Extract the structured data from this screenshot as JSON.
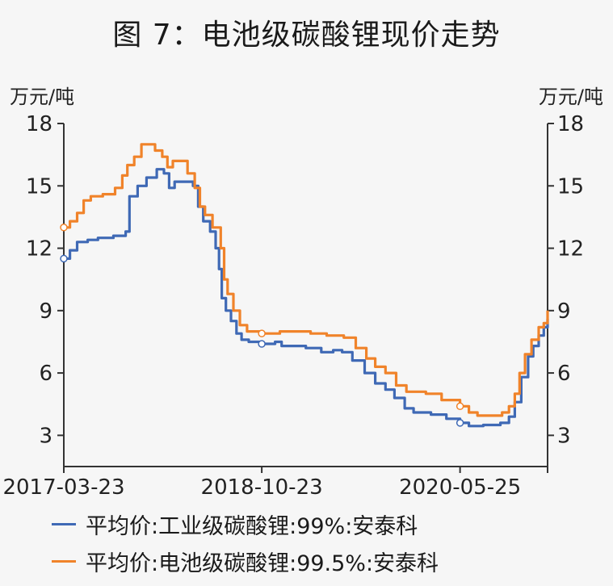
{
  "title": "图 7：电池级碳酸锂现价走势",
  "chart_data": {
    "type": "line",
    "left_unit": "万元/吨",
    "right_unit": "万元/吨",
    "x_tick_labels": [
      "2017-03-23",
      "2018-10-23",
      "2020-05-25"
    ],
    "x_tick_dates": [
      "2017-03-23",
      "2018-10-23",
      "2020-05-25"
    ],
    "x_range": [
      "2017-03-23",
      "2021-02-05"
    ],
    "ylim": [
      1.5,
      18
    ],
    "y_ticks": [
      3,
      6,
      9,
      12,
      15,
      18
    ],
    "series": [
      {
        "name": "平均价:工业级碳酸锂:99%:安泰科",
        "color": "#3f69b5",
        "points": [
          [
            "2017-03-23",
            11.5
          ],
          [
            "2017-04-10",
            11.9
          ],
          [
            "2017-05-01",
            12.3
          ],
          [
            "2017-06-01",
            12.4
          ],
          [
            "2017-07-01",
            12.5
          ],
          [
            "2017-08-15",
            12.6
          ],
          [
            "2017-09-20",
            12.8
          ],
          [
            "2017-10-01",
            14.5
          ],
          [
            "2017-10-25",
            15.0
          ],
          [
            "2017-11-20",
            15.4
          ],
          [
            "2017-12-20",
            15.8
          ],
          [
            "2018-01-10",
            15.6
          ],
          [
            "2018-01-25",
            14.9
          ],
          [
            "2018-02-10",
            15.2
          ],
          [
            "2018-03-15",
            15.2
          ],
          [
            "2018-04-05",
            15.0
          ],
          [
            "2018-04-20",
            14.0
          ],
          [
            "2018-05-05",
            13.3
          ],
          [
            "2018-05-25",
            12.8
          ],
          [
            "2018-06-10",
            12.0
          ],
          [
            "2018-06-20",
            11.0
          ],
          [
            "2018-06-28",
            9.6
          ],
          [
            "2018-07-10",
            9.0
          ],
          [
            "2018-07-25",
            8.5
          ],
          [
            "2018-08-10",
            7.9
          ],
          [
            "2018-08-25",
            7.6
          ],
          [
            "2018-09-15",
            7.5
          ],
          [
            "2018-10-23",
            7.4
          ],
          [
            "2018-12-01",
            7.5
          ],
          [
            "2018-12-20",
            7.3
          ],
          [
            "2019-03-01",
            7.2
          ],
          [
            "2019-04-15",
            7.0
          ],
          [
            "2019-05-20",
            7.1
          ],
          [
            "2019-06-15",
            7.0
          ],
          [
            "2019-07-15",
            6.6
          ],
          [
            "2019-08-20",
            6.0
          ],
          [
            "2019-09-20",
            5.5
          ],
          [
            "2019-10-20",
            5.2
          ],
          [
            "2019-11-15",
            4.8
          ],
          [
            "2019-12-15",
            4.3
          ],
          [
            "2020-01-10",
            4.1
          ],
          [
            "2020-03-01",
            4.0
          ],
          [
            "2020-04-15",
            3.8
          ],
          [
            "2020-05-25",
            3.6
          ],
          [
            "2020-06-20",
            3.45
          ],
          [
            "2020-08-01",
            3.5
          ],
          [
            "2020-09-20",
            3.6
          ],
          [
            "2020-10-15",
            3.9
          ],
          [
            "2020-11-01",
            4.6
          ],
          [
            "2020-11-20",
            5.8
          ],
          [
            "2020-12-10",
            6.8
          ],
          [
            "2020-12-25",
            7.3
          ],
          [
            "2021-01-10",
            7.8
          ],
          [
            "2021-01-25",
            8.2
          ],
          [
            "2021-02-05",
            8.6
          ]
        ]
      },
      {
        "name": "平均价:电池级碳酸锂:99.5%:安泰科",
        "color": "#f0832a",
        "points": [
          [
            "2017-03-23",
            13.0
          ],
          [
            "2017-04-10",
            13.3
          ],
          [
            "2017-05-01",
            13.7
          ],
          [
            "2017-05-20",
            14.3
          ],
          [
            "2017-06-10",
            14.5
          ],
          [
            "2017-07-15",
            14.6
          ],
          [
            "2017-08-20",
            14.9
          ],
          [
            "2017-09-10",
            15.5
          ],
          [
            "2017-09-25",
            16.0
          ],
          [
            "2017-10-15",
            16.4
          ],
          [
            "2017-11-05",
            17.0
          ],
          [
            "2017-12-15",
            16.7
          ],
          [
            "2018-01-05",
            16.4
          ],
          [
            "2018-01-20",
            15.9
          ],
          [
            "2018-02-05",
            16.2
          ],
          [
            "2018-03-01",
            16.2
          ],
          [
            "2018-03-20",
            15.6
          ],
          [
            "2018-04-10",
            14.9
          ],
          [
            "2018-04-25",
            14.0
          ],
          [
            "2018-05-10",
            13.6
          ],
          [
            "2018-06-01",
            13.0
          ],
          [
            "2018-06-25",
            12.0
          ],
          [
            "2018-07-05",
            10.5
          ],
          [
            "2018-07-15",
            9.8
          ],
          [
            "2018-08-01",
            9.0
          ],
          [
            "2018-08-20",
            8.3
          ],
          [
            "2018-09-10",
            8.0
          ],
          [
            "2018-10-23",
            7.9
          ],
          [
            "2018-12-15",
            8.0
          ],
          [
            "2019-03-15",
            7.9
          ],
          [
            "2019-05-01",
            7.8
          ],
          [
            "2019-06-20",
            7.7
          ],
          [
            "2019-07-25",
            7.2
          ],
          [
            "2019-08-25",
            6.7
          ],
          [
            "2019-09-20",
            6.3
          ],
          [
            "2019-10-20",
            6.0
          ],
          [
            "2019-11-20",
            5.4
          ],
          [
            "2019-12-20",
            5.1
          ],
          [
            "2020-02-15",
            5.0
          ],
          [
            "2020-04-01",
            4.7
          ],
          [
            "2020-05-25",
            4.4
          ],
          [
            "2020-06-20",
            4.1
          ],
          [
            "2020-07-15",
            3.95
          ],
          [
            "2020-09-01",
            3.95
          ],
          [
            "2020-09-25",
            4.1
          ],
          [
            "2020-10-15",
            4.4
          ],
          [
            "2020-11-01",
            5.0
          ],
          [
            "2020-11-15",
            6.0
          ],
          [
            "2020-12-01",
            6.9
          ],
          [
            "2020-12-20",
            7.6
          ],
          [
            "2021-01-10",
            8.2
          ],
          [
            "2021-01-25",
            8.4
          ],
          [
            "2021-02-05",
            9.0
          ]
        ]
      }
    ],
    "markers": [
      {
        "series": 0,
        "date": "2017-03-23",
        "value": 11.5
      },
      {
        "series": 0,
        "date": "2018-10-23",
        "value": 7.4
      },
      {
        "series": 0,
        "date": "2020-05-25",
        "value": 3.6
      },
      {
        "series": 1,
        "date": "2017-03-23",
        "value": 13.0
      },
      {
        "series": 1,
        "date": "2018-10-23",
        "value": 7.9
      },
      {
        "series": 1,
        "date": "2020-05-25",
        "value": 4.4
      }
    ],
    "grid": false,
    "legend_position": "bottom"
  }
}
